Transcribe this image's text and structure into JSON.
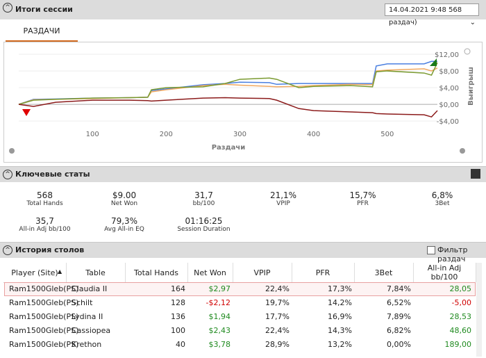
{
  "header": {
    "title": "Итоги сессии",
    "session": "14.04.2021 9:48 568 раздач)"
  },
  "tabs": [
    "РАЗДАЧИ"
  ],
  "chart_data": {
    "type": "line",
    "x_label": "Раздачи",
    "y_label": "Выигрыш",
    "x": [
      0,
      20,
      50,
      100,
      150,
      175,
      180,
      200,
      250,
      280,
      300,
      340,
      350,
      380,
      400,
      450,
      480,
      485,
      500,
      550,
      560,
      568
    ],
    "series": [
      {
        "color": "#4a7fe0",
        "values": [
          0,
          1.2,
          1.3,
          1.5,
          1.6,
          1.7,
          3.3,
          3.7,
          4.7,
          5.0,
          5.3,
          5.2,
          4.8,
          5.0,
          5.0,
          5.0,
          5.0,
          9.2,
          9.7,
          9.7,
          10.3,
          10.3
        ]
      },
      {
        "color": "#f0a860",
        "values": [
          0,
          1.1,
          1.2,
          1.4,
          1.6,
          1.7,
          3.0,
          3.5,
          4.5,
          4.8,
          4.6,
          4.3,
          4.2,
          4.3,
          4.5,
          4.8,
          4.7,
          8.0,
          8.2,
          8.5,
          8.0,
          8.7
        ]
      },
      {
        "color": "#7a9a30",
        "values": [
          0,
          1.0,
          1.2,
          1.5,
          1.6,
          1.7,
          3.5,
          4.0,
          4.2,
          5.0,
          6.0,
          6.3,
          6.0,
          4.0,
          4.3,
          4.5,
          4.2,
          7.8,
          8.0,
          7.5,
          7.0,
          10.0
        ]
      },
      {
        "color": "#8b1a1a",
        "values": [
          0,
          -0.5,
          0.5,
          1.0,
          1.0,
          0.9,
          0.8,
          1.0,
          1.5,
          1.6,
          1.5,
          1.4,
          1.0,
          -1.0,
          -1.5,
          -1.8,
          -2.0,
          -2.2,
          -2.3,
          -2.5,
          -3.0,
          -1.5
        ]
      }
    ],
    "xlim": [
      0,
      568
    ],
    "xticks": [
      100,
      200,
      300,
      400,
      500
    ],
    "ylim": [
      -5.8,
      14.5
    ],
    "yticks": [
      {
        "value": -4,
        "label": "-$4,00"
      },
      {
        "value": 0,
        "label": "$0,00"
      },
      {
        "value": 4,
        "label": "$4,00"
      },
      {
        "value": 8,
        "label": "$8,00"
      },
      {
        "value": 12,
        "label": "$12,00"
      }
    ],
    "grid": true
  },
  "key_stats": {
    "title": "Ключевые статы",
    "items": [
      {
        "value": "568",
        "label": "Total Hands"
      },
      {
        "value": "$9.00",
        "label": "Net Won"
      },
      {
        "value": "31,7",
        "label": "bb/100"
      },
      {
        "value": "21,1%",
        "label": "VPIP"
      },
      {
        "value": "15,7%",
        "label": "PFR"
      },
      {
        "value": "6,8%",
        "label": "3Bet"
      },
      {
        "value": "35,7",
        "label": "All-in Adj bb/100"
      },
      {
        "value": "79,3%",
        "label": "Avg All-in EQ"
      },
      {
        "value": "01:16:25",
        "label": "Session Duration"
      }
    ]
  },
  "history": {
    "title": "История столов",
    "filter": "Фильтр раздач",
    "columns": [
      "Player (Site)",
      "Table",
      "Total Hands",
      "Net Won",
      "VPIP",
      "PFR",
      "3Bet",
      "All-in Adj bb/100"
    ],
    "rows": [
      [
        "Ram1500Gleb(PS)",
        "Claudia II",
        "164",
        "$2,97",
        "22,4%",
        "17,3%",
        "7,84%",
        "28,05"
      ],
      [
        "Ram1500Gleb(PS)",
        "Schilt",
        "128",
        "-$2,12",
        "19,7%",
        "14,2%",
        "6,52%",
        "-5,00"
      ],
      [
        "Ram1500Gleb(PS)",
        "Lydina II",
        "136",
        "$1,94",
        "17,7%",
        "16,9%",
        "7,89%",
        "28,53"
      ],
      [
        "Ram1500Gleb(PS)",
        "Cassiopea",
        "100",
        "$2,43",
        "22,4%",
        "14,3%",
        "6,82%",
        "48,60"
      ],
      [
        "Ram1500Gleb(PS)",
        "Krethon",
        "40",
        "$3,78",
        "28,9%",
        "13,2%",
        "0,00%",
        "189,00"
      ]
    ]
  }
}
